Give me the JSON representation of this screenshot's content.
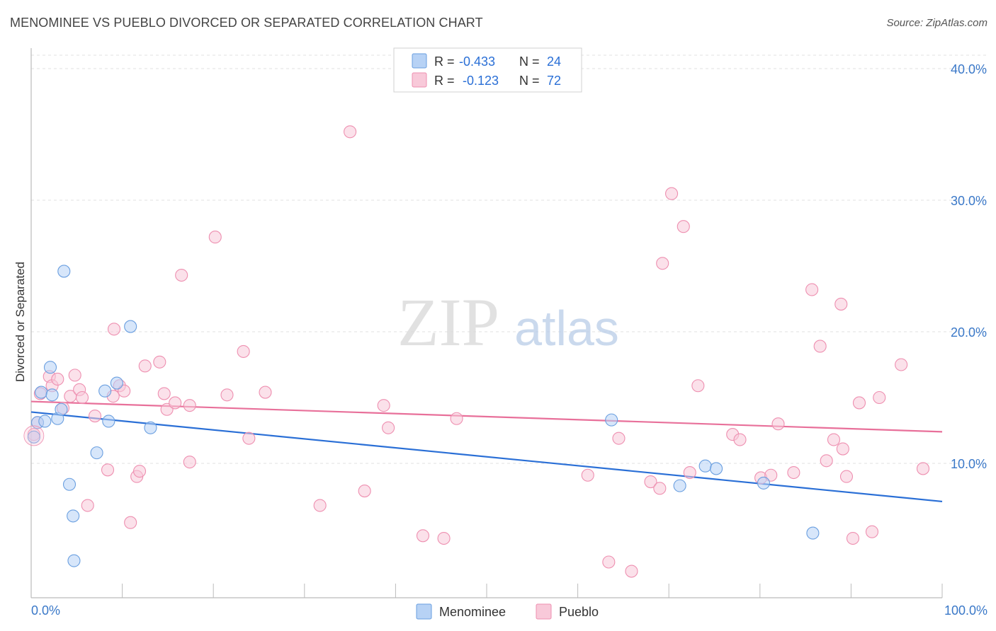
{
  "title": "MENOMINEE VS PUEBLO DIVORCED OR SEPARATED CORRELATION CHART",
  "source": "Source: ZipAtlas.com",
  "watermark": {
    "zip": "ZIP",
    "atlas": "atlas"
  },
  "colors": {
    "blue": "#6a9fe0",
    "blue_fill": "#b7d2f5",
    "blue_line": "#2a6fd6",
    "pink": "#ee8fb0",
    "pink_fill": "#f8c9d9",
    "pink_line": "#e8709a",
    "axis_label": "#3a78c8",
    "grid": "#e0e0e0"
  },
  "chart_data": {
    "type": "scatter",
    "title": "MENOMINEE VS PUEBLO DIVORCED OR SEPARATED CORRELATION CHART",
    "xlabel": "",
    "ylabel": "Divorced or Separated",
    "xlim": [
      0,
      100
    ],
    "ylim": [
      0,
      42
    ],
    "x_tick_labels": [
      "0.0%",
      "100.0%"
    ],
    "y_ticks": [
      10,
      20,
      30,
      40
    ],
    "y_tick_labels": [
      "10.0%",
      "20.0%",
      "30.0%",
      "40.0%"
    ],
    "legend": [
      {
        "name": "Menominee",
        "r_label": "R =",
        "r_value": "-0.433",
        "n_label": "N =",
        "n_value": "24"
      },
      {
        "name": "Pueblo",
        "r_label": "R =",
        "r_value": "-0.123",
        "n_label": "N =",
        "n_value": "72"
      }
    ],
    "series": [
      {
        "name": "Menominee",
        "trend": {
          "x": [
            0,
            100
          ],
          "y": [
            13.9,
            7.1
          ]
        },
        "points": [
          [
            0.3,
            12.0
          ],
          [
            0.7,
            13.1
          ],
          [
            1.1,
            15.4
          ],
          [
            1.5,
            13.2
          ],
          [
            2.1,
            17.3
          ],
          [
            2.3,
            15.2
          ],
          [
            2.9,
            13.4
          ],
          [
            3.3,
            14.1
          ],
          [
            3.6,
            24.6
          ],
          [
            4.2,
            8.4
          ],
          [
            4.6,
            6.0
          ],
          [
            4.7,
            2.6
          ],
          [
            7.2,
            10.8
          ],
          [
            8.1,
            15.5
          ],
          [
            8.5,
            13.2
          ],
          [
            9.4,
            16.1
          ],
          [
            10.9,
            20.4
          ],
          [
            13.1,
            12.7
          ],
          [
            63.7,
            13.3
          ],
          [
            71.2,
            8.3
          ],
          [
            74.0,
            9.8
          ],
          [
            75.2,
            9.6
          ],
          [
            80.4,
            8.5
          ],
          [
            85.8,
            4.7
          ]
        ]
      },
      {
        "name": "Pueblo",
        "trend": {
          "x": [
            0,
            100
          ],
          "y": [
            14.7,
            12.4
          ]
        },
        "points": [
          [
            0.3,
            12.2
          ],
          [
            0.7,
            13.1
          ],
          [
            1.0,
            15.3
          ],
          [
            2.0,
            16.6
          ],
          [
            2.3,
            15.9
          ],
          [
            2.9,
            16.4
          ],
          [
            3.5,
            14.2
          ],
          [
            4.3,
            15.1
          ],
          [
            4.8,
            16.7
          ],
          [
            5.3,
            15.6
          ],
          [
            5.6,
            15.0
          ],
          [
            6.2,
            6.8
          ],
          [
            7.0,
            13.6
          ],
          [
            8.4,
            9.5
          ],
          [
            9.1,
            20.2
          ],
          [
            9.0,
            15.1
          ],
          [
            9.7,
            15.9
          ],
          [
            10.2,
            15.5
          ],
          [
            10.9,
            5.5
          ],
          [
            11.6,
            9.0
          ],
          [
            11.9,
            9.4
          ],
          [
            12.5,
            17.4
          ],
          [
            14.1,
            17.7
          ],
          [
            14.6,
            15.3
          ],
          [
            14.9,
            14.1
          ],
          [
            15.8,
            14.6
          ],
          [
            16.5,
            24.3
          ],
          [
            17.4,
            14.4
          ],
          [
            17.4,
            10.1
          ],
          [
            20.2,
            27.2
          ],
          [
            21.5,
            15.2
          ],
          [
            23.3,
            18.5
          ],
          [
            23.9,
            11.9
          ],
          [
            25.7,
            15.4
          ],
          [
            31.7,
            6.8
          ],
          [
            35.0,
            35.2
          ],
          [
            36.6,
            7.9
          ],
          [
            38.7,
            14.4
          ],
          [
            39.2,
            12.7
          ],
          [
            43.0,
            4.5
          ],
          [
            45.3,
            4.3
          ],
          [
            46.7,
            13.4
          ],
          [
            61.1,
            9.1
          ],
          [
            63.4,
            2.5
          ],
          [
            64.5,
            11.9
          ],
          [
            65.9,
            1.8
          ],
          [
            68.0,
            8.6
          ],
          [
            69.0,
            8.1
          ],
          [
            69.3,
            25.2
          ],
          [
            70.3,
            30.5
          ],
          [
            71.6,
            28.0
          ],
          [
            72.3,
            9.3
          ],
          [
            73.2,
            15.9
          ],
          [
            77.0,
            12.2
          ],
          [
            77.8,
            11.8
          ],
          [
            80.1,
            8.9
          ],
          [
            81.2,
            9.1
          ],
          [
            82.0,
            13.0
          ],
          [
            83.7,
            9.3
          ],
          [
            85.7,
            23.2
          ],
          [
            86.6,
            18.9
          ],
          [
            87.3,
            10.2
          ],
          [
            88.1,
            11.8
          ],
          [
            88.9,
            22.1
          ],
          [
            89.1,
            11.1
          ],
          [
            89.5,
            9.0
          ],
          [
            90.2,
            4.3
          ],
          [
            90.9,
            14.6
          ],
          [
            92.3,
            4.8
          ],
          [
            93.1,
            15.0
          ],
          [
            95.5,
            17.5
          ],
          [
            97.9,
            9.6
          ]
        ]
      }
    ]
  }
}
